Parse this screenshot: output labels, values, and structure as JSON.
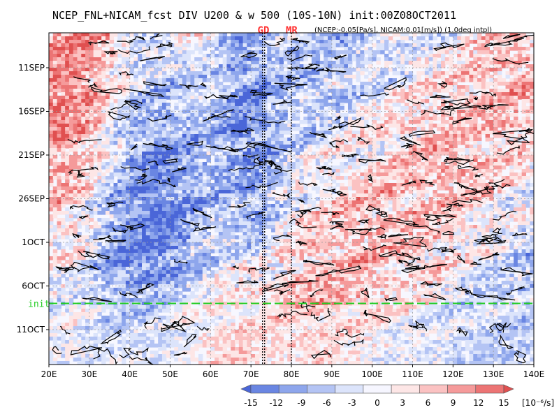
{
  "chart_data": {
    "type": "heatmap",
    "title": "NCEP_FNL+NICAM_fcst DIV U200 & w 500 (10S-10N) init:00Z08OCT2011",
    "subtitle": "(NCEP:-0.05[Pa/s], NICAM:0.01[m/s]) (1.0deg intpl)",
    "x_range": [
      20,
      140
    ],
    "x_ticks": [
      "20E",
      "30E",
      "40E",
      "50E",
      "60E",
      "70E",
      "80E",
      "90E",
      "100E",
      "110E",
      "120E",
      "130E",
      "140E"
    ],
    "x_tick_values": [
      20,
      30,
      40,
      50,
      60,
      70,
      80,
      90,
      100,
      110,
      120,
      130,
      140
    ],
    "y_ticks": [
      {
        "label": "11SEP",
        "day": 11
      },
      {
        "label": "16SEP",
        "day": 16
      },
      {
        "label": "21SEP",
        "day": 21
      },
      {
        "label": "26SEP",
        "day": 26
      },
      {
        "label": "1OCT",
        "day": 31
      },
      {
        "label": "6OCT",
        "day": 36
      },
      {
        "label": "11OCT",
        "day": 41
      }
    ],
    "y_range_days": [
      7,
      45
    ],
    "init": {
      "label": "init",
      "day": 38
    },
    "markers": [
      {
        "label": "GD",
        "lon": 73
      },
      {
        "label": "MR",
        "lon": 80
      }
    ],
    "colorbar": {
      "ticks": [
        "-15",
        "-12",
        "-9",
        "-6",
        "-3",
        "0",
        "3",
        "6",
        "9",
        "12",
        "15"
      ],
      "tick_values": [
        -15,
        -12,
        -9,
        -6,
        -3,
        0,
        3,
        6,
        9,
        12,
        15
      ],
      "unit": "[10⁻⁶/s]",
      "colors": [
        "#4a66d8",
        "#6a86e2",
        "#8ea6ec",
        "#b4c4f4",
        "#dce4fb",
        "#f6f6ff",
        "#fde6e6",
        "#fbc2c2",
        "#f59a9a",
        "#ec7474",
        "#e05050"
      ]
    },
    "grid": true
  }
}
